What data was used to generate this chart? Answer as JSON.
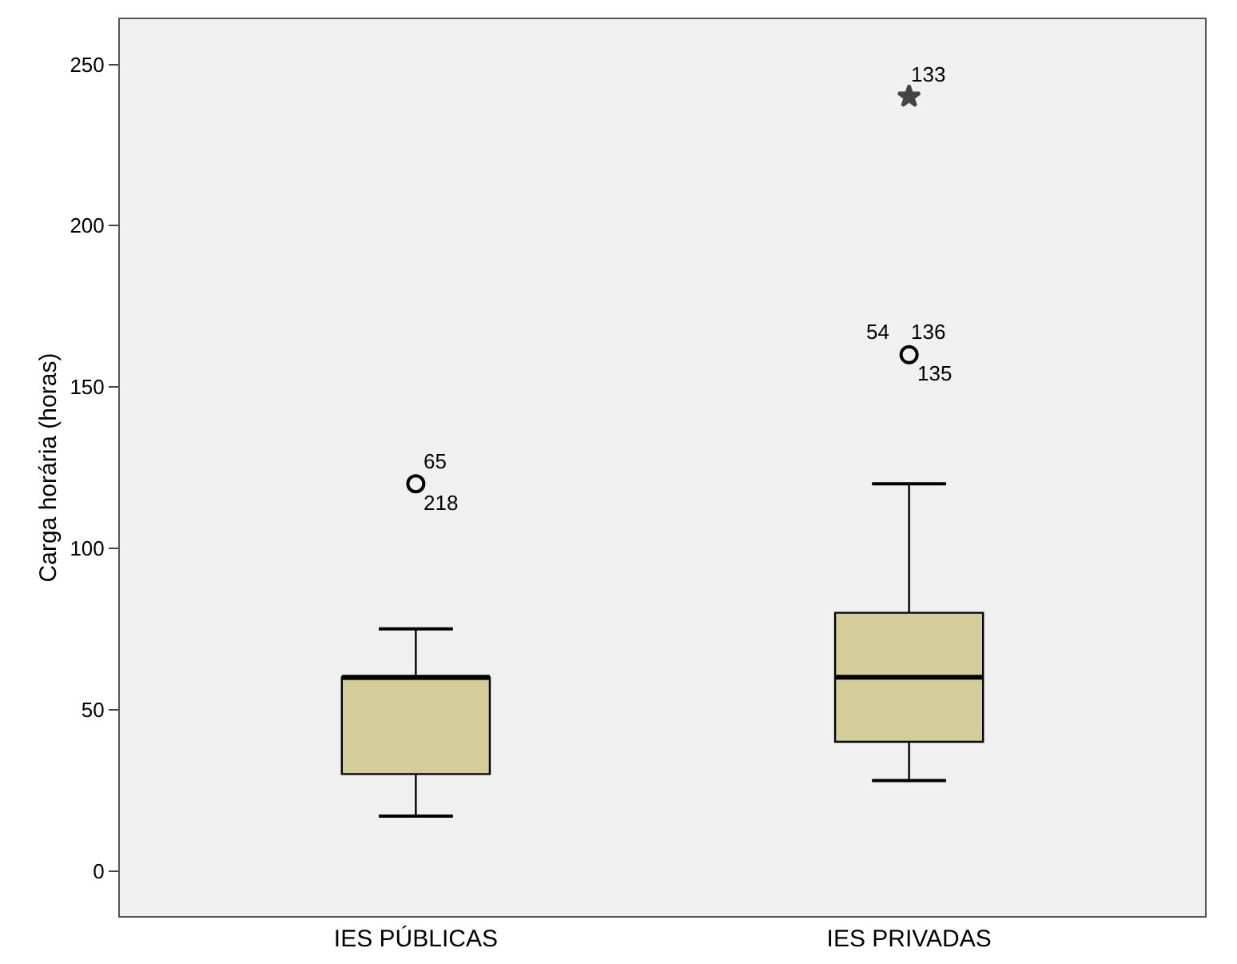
{
  "chart_data": {
    "type": "box",
    "ylabel": "Carga horária (horas)",
    "categories": [
      "IES PÚBLICAS",
      "IES PRIVADAS"
    ],
    "boxes": [
      {
        "low": 17,
        "q1": 30,
        "median": 60,
        "q3": 60,
        "high": 75
      },
      {
        "low": 28,
        "q1": 40,
        "median": 60,
        "q3": 80,
        "high": 120
      }
    ],
    "series": [
      {
        "type": "scatter",
        "marker": "circle",
        "color": "#000000",
        "x": [
          "IES PÚBLICAS",
          "IES PRIVADAS"
        ],
        "values": [
          120,
          160
        ]
      },
      {
        "type": "scatter",
        "marker": "star",
        "color": "#444444",
        "x": [
          "IES PRIVADAS"
        ],
        "values": [
          240
        ]
      }
    ],
    "color": "#d4cc99",
    "ylim": [
      -14,
      264
    ],
    "yticks": [
      0,
      50,
      100,
      150,
      200,
      250
    ],
    "grid": false,
    "annotations": [
      {
        "text": "65",
        "x": "IES PÚBLICAS",
        "y": 120
      },
      {
        "text": "218",
        "x": "IES PÚBLICAS",
        "y": 120
      },
      {
        "text": "136",
        "x": "IES PRIVADAS",
        "y": 160
      },
      {
        "text": "135",
        "x": "IES PRIVADAS",
        "y": 160
      },
      {
        "text": "54",
        "x": "IES PRIVADAS",
        "y": 160
      },
      {
        "text": "133",
        "x": "IES PRIVADAS",
        "y": 240
      }
    ]
  }
}
